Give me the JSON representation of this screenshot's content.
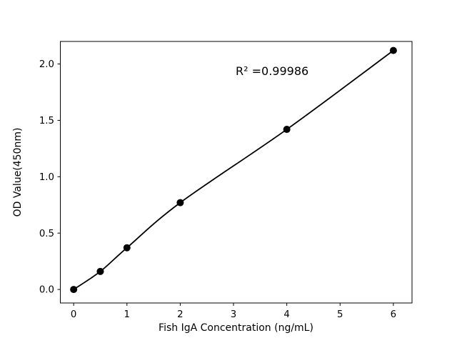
{
  "figure": {
    "background": "#ffffff",
    "foreground": "#000000"
  },
  "chart_data": {
    "type": "scatter",
    "title": "",
    "xlabel": "Fish IgA Concentration (ng/mL)",
    "ylabel": "OD Value(450nm)",
    "annotation": "R² =0.99986",
    "r_squared": 0.99986,
    "x": [
      0,
      0.5,
      1,
      2,
      4,
      6
    ],
    "y": [
      0.0,
      0.16,
      0.37,
      0.77,
      1.42,
      2.12
    ],
    "fit_line": true,
    "marker": "circle",
    "marker_color": "#000000",
    "line_color": "#000000",
    "grid": false,
    "xlim": [
      -0.25,
      6.35
    ],
    "ylim": [
      -0.12,
      2.2
    ],
    "xticks": [
      "0",
      "1",
      "2",
      "3",
      "4",
      "5",
      "6"
    ],
    "xtick_values": [
      0,
      1,
      2,
      3,
      4,
      5,
      6
    ],
    "yticks": [
      "0.0",
      "0.5",
      "1.0",
      "1.5",
      "2.0"
    ],
    "ytick_values": [
      0.0,
      0.5,
      1.0,
      1.5,
      2.0
    ]
  }
}
